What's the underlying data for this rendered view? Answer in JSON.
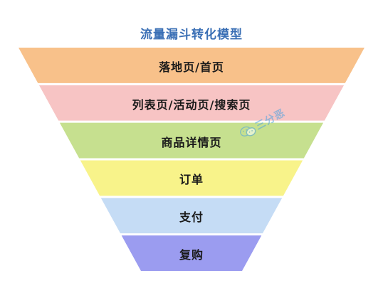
{
  "title": "流量漏斗转化模型",
  "watermark": {
    "text": "三分恶",
    "icon": "wechat-icon",
    "color": "#4ea3e0"
  },
  "stages": [
    {
      "label": "落地页/首页",
      "color": "#f8c18a"
    },
    {
      "label": "列表页/活动页/搜索页",
      "color": "#f7c4c4"
    },
    {
      "label": "商品详情页",
      "color": "#c6e08f"
    },
    {
      "label": "订单",
      "color": "#f8f38a"
    },
    {
      "label": "支付",
      "color": "#c5dcf5"
    },
    {
      "label": "复购",
      "color": "#9b9cf0"
    }
  ]
}
